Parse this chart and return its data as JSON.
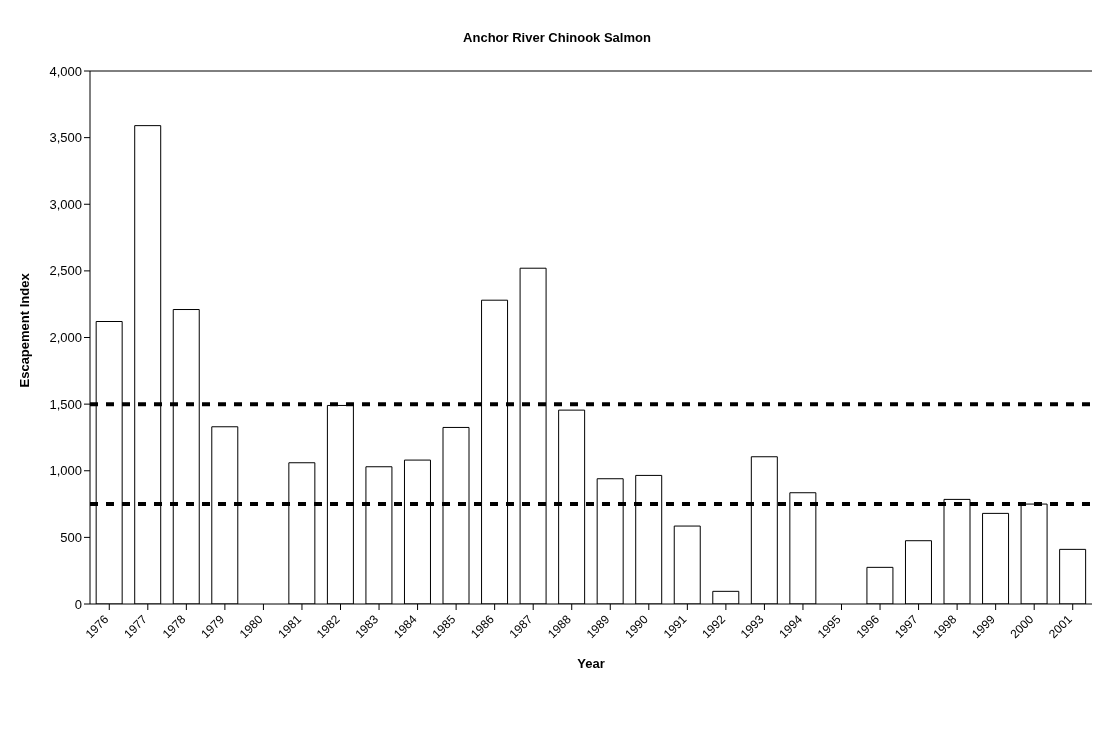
{
  "chart_data": {
    "type": "bar",
    "title": "Anchor River Chinook Salmon",
    "xlabel": "Year",
    "ylabel": "Escapement Index",
    "categories": [
      "1976",
      "1977",
      "1978",
      "1979",
      "1980",
      "1981",
      "1982",
      "1983",
      "1984",
      "1985",
      "1986",
      "1987",
      "1988",
      "1989",
      "1990",
      "1991",
      "1992",
      "1993",
      "1994",
      "1995",
      "1996",
      "1997",
      "1998",
      "1999",
      "2000",
      "2001"
    ],
    "series": [
      {
        "color": "#ffffff",
        "values": [
          2120,
          3590,
          2210,
          1330,
          null,
          1060,
          1490,
          1030,
          1080,
          1325,
          2280,
          2520,
          1455,
          940,
          965,
          585,
          95,
          1105,
          835,
          null,
          275,
          475,
          785,
          680,
          750,
          410
        ]
      }
    ],
    "ylim": [
      0,
      4000
    ],
    "yticks": [
      {
        "value": 0,
        "label": "0"
      },
      {
        "value": 500,
        "label": "500"
      },
      {
        "value": 1000,
        "label": "1,000"
      },
      {
        "value": 1500,
        "label": "1,500"
      },
      {
        "value": 2000,
        "label": "2,000"
      },
      {
        "value": 2500,
        "label": "2,500"
      },
      {
        "value": 3000,
        "label": "3,000"
      },
      {
        "value": 3500,
        "label": "3,500"
      },
      {
        "value": 4000,
        "label": "4,000"
      }
    ],
    "ref_lines": [
      {
        "axis": "y",
        "value": 1500,
        "color": "#000000",
        "line_style": "dashed"
      },
      {
        "axis": "y",
        "value": 750,
        "color": "#000000",
        "line_style": "dashed"
      }
    ],
    "grid": false,
    "legend": false
  }
}
